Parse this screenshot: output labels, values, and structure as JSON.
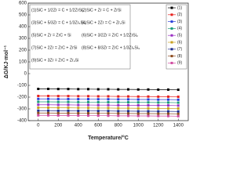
{
  "chart_data": {
    "type": "line",
    "xlabel": "Temperature/°C",
    "ylabel": "ΔG/KJ·mol⁻¹",
    "x": [
      0,
      100,
      200,
      300,
      400,
      500,
      600,
      700,
      800,
      900,
      1000,
      1100,
      1200,
      1300,
      1400
    ],
    "xlim": [
      -100,
      1500
    ],
    "xticks": [
      0,
      200,
      400,
      600,
      800,
      1000,
      1200,
      1400
    ],
    "ylim": [
      -400,
      600
    ],
    "yticks": [
      -400,
      -300,
      -200,
      -100,
      0,
      100,
      200,
      300,
      400,
      500,
      600
    ],
    "annotations": [
      "(1)SiC + 1/2Zr = C + 1/2ZrSi₂",
      "(2)SiC + Zr = C + ZrSi",
      "(3)SiC + 5/3Zr = C + 1/3Zr₅Si₃",
      "(4)SiC + 2Zr = C + Zr₂Si",
      "(5)SiC + Zr = ZrC + Si",
      "(6)SiC + 3/2Zr = ZrC + 1/2ZrSi₂",
      "(7)SiC + 2Zr = ZrC + ZrSi",
      "(8)SiC + 8/3Zr = ZrC + 1/3Zr₅Si₃",
      "(9)SiC + 3Zr = ZrC + Zr₂Si"
    ],
    "series": [
      {
        "name": "(1)",
        "color": "#000000",
        "values": [
          -130,
          -130,
          -131,
          -131,
          -132,
          -132,
          -133,
          -133,
          -134,
          -134,
          -135,
          -135,
          -136,
          -136,
          -137
        ]
      },
      {
        "name": "(2)",
        "color": "#e8221e",
        "values": [
          -190,
          -190,
          -191,
          -191,
          -192,
          -192,
          -193,
          -193,
          -194,
          -194,
          -195,
          -195,
          -196,
          -196,
          -197
        ]
      },
      {
        "name": "(3)",
        "color": "#2a3fd8",
        "values": [
          -215,
          -215,
          -216,
          -216,
          -217,
          -217,
          -218,
          -218,
          -219,
          -219,
          -220,
          -220,
          -221,
          -221,
          -222
        ]
      },
      {
        "name": "(4)",
        "color": "#1a9b7a",
        "values": [
          -240,
          -240,
          -241,
          -241,
          -242,
          -242,
          -243,
          -243,
          -244,
          -244,
          -245,
          -245,
          -246,
          -246,
          -247
        ]
      },
      {
        "name": "(5)",
        "color": "#9b2fc4",
        "values": [
          -265,
          -265,
          -266,
          -266,
          -267,
          -267,
          -268,
          -268,
          -269,
          -269,
          -270,
          -270,
          -271,
          -271,
          -272
        ]
      },
      {
        "name": "(6)",
        "color": "#c8a020",
        "values": [
          -290,
          -290,
          -291,
          -291,
          -292,
          -292,
          -293,
          -293,
          -294,
          -294,
          -295,
          -295,
          -296,
          -296,
          -297
        ]
      },
      {
        "name": "(7)",
        "color": "#1f2f8f",
        "values": [
          -315,
          -315,
          -316,
          -316,
          -317,
          -317,
          -318,
          -318,
          -319,
          -319,
          -320,
          -320,
          -321,
          -321,
          -322
        ]
      },
      {
        "name": "(8)",
        "color": "#8b4a1e",
        "values": [
          -335,
          -335,
          -336,
          -336,
          -337,
          -337,
          -338,
          -338,
          -339,
          -339,
          -340,
          -340,
          -341,
          -341,
          -342
        ]
      },
      {
        "name": "(9)",
        "color": "#d04aa0",
        "values": [
          -355,
          -355,
          -356,
          -356,
          -357,
          -357,
          -358,
          -358,
          -359,
          -359,
          -360,
          -360,
          -361,
          -361,
          -362
        ]
      }
    ]
  }
}
